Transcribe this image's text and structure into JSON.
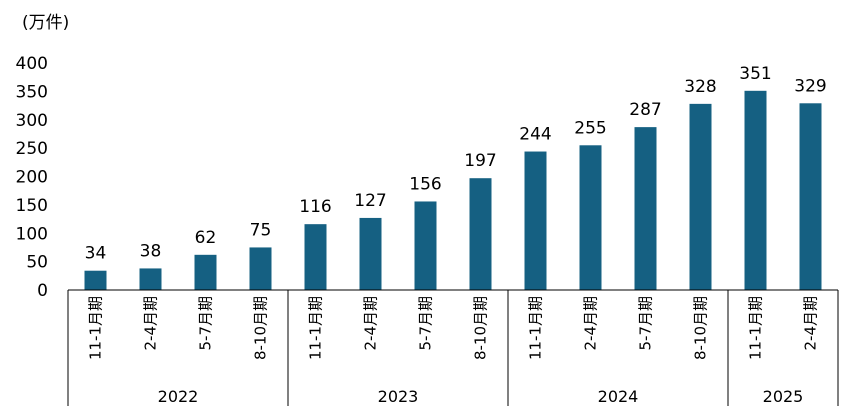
{
  "chart_data": {
    "type": "bar",
    "unit_label": "(万件)",
    "categories": [
      "11-1月期",
      "2-4月期",
      "5-7月期",
      "8-10月期",
      "11-1月期",
      "2-4月期",
      "5-7月期",
      "8-10月期",
      "11-1月期",
      "2-4月期",
      "5-7月期",
      "8-10月期",
      "11-1月期",
      "2-4月期"
    ],
    "groups": [
      {
        "label": "2022",
        "count": 4
      },
      {
        "label": "2023",
        "count": 4
      },
      {
        "label": "2024",
        "count": 4
      },
      {
        "label": "2025",
        "count": 2
      }
    ],
    "values": [
      34,
      38,
      62,
      75,
      116,
      127,
      156,
      197,
      244,
      255,
      287,
      328,
      351,
      329
    ],
    "yticks": [
      "0",
      "50",
      "100",
      "150",
      "200",
      "250",
      "300",
      "350",
      "400"
    ],
    "ylim": [
      0,
      400
    ],
    "bar_color": "#156082",
    "grid": false,
    "legend": "none"
  }
}
